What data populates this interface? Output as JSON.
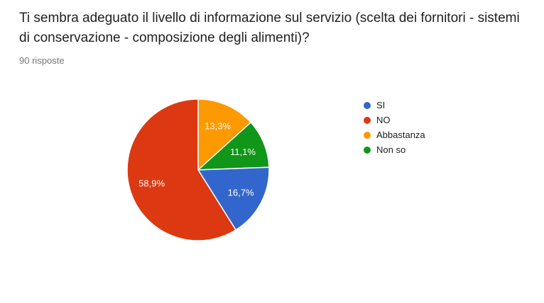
{
  "header": {
    "question": "Ti sembra adeguato il livello di informazione sul servizio (scelta dei fornitori - sistemi di conservazione - composizione degli alimenti)?",
    "responses": "90 risposte"
  },
  "chart_data": {
    "type": "pie",
    "title": "Ti sembra adeguato il livello di informazione sul servizio (scelta dei fornitori - sistemi di conservazione - composizione degli alimenti)?",
    "subtitle": "90 risposte",
    "legend_position": "right",
    "background_color": "#ffffff",
    "stroke_color": "#ffffff",
    "label_color": "#ffffff",
    "slices": [
      {
        "label": "SI",
        "value_pct": 16.7,
        "display": "16,7%",
        "color": "#3366CC"
      },
      {
        "label": "NO",
        "value_pct": 58.9,
        "display": "58,9%",
        "color": "#DC3912"
      },
      {
        "label": "Abbastanza",
        "value_pct": 13.3,
        "display": "13,3%",
        "color": "#FF9900"
      },
      {
        "label": "Non so",
        "value_pct": 11.1,
        "display": "11,1%",
        "color": "#109618"
      }
    ],
    "render_clockwise_from_top": [
      "Abbastanza",
      "Non so",
      "SI",
      "NO"
    ]
  }
}
